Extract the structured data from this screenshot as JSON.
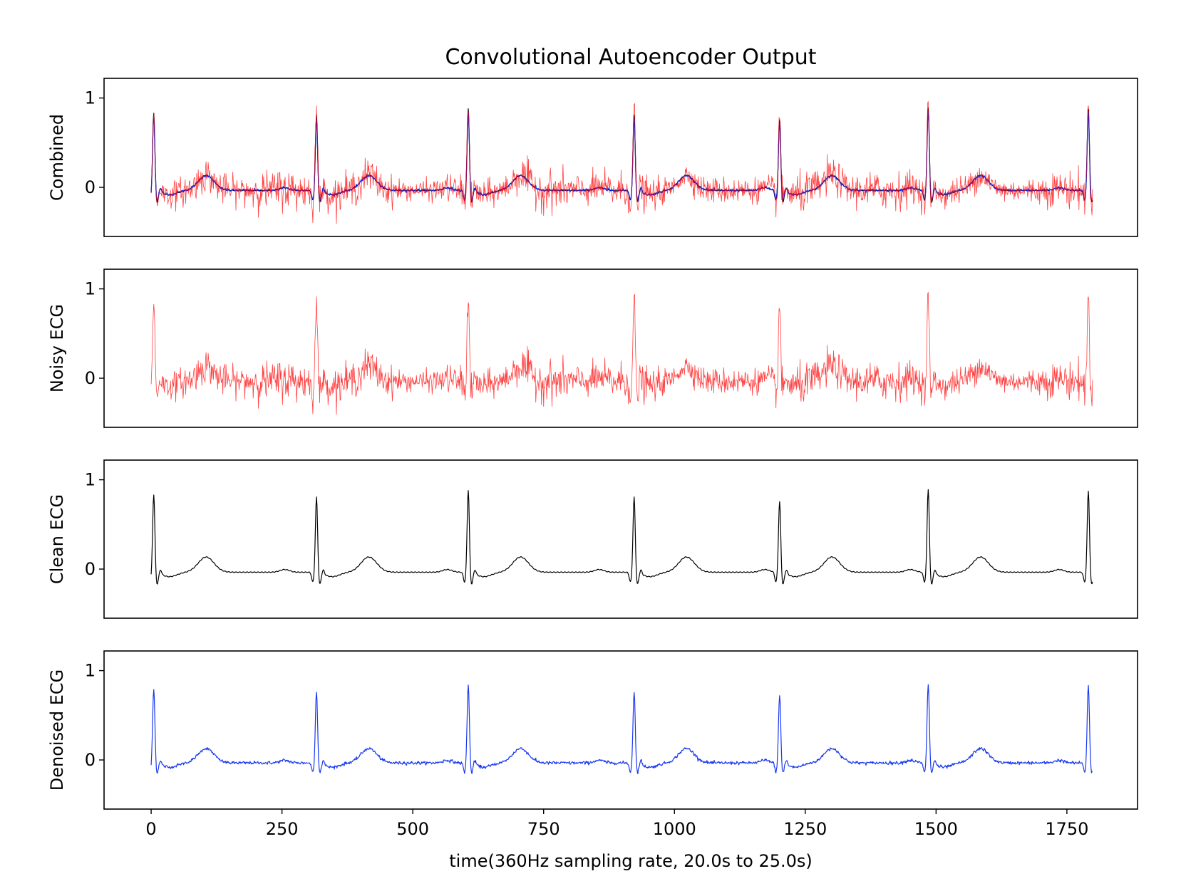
{
  "chart_data": {
    "type": "line",
    "title": "Convolutional Autoencoder Output",
    "xlabel": "time(360Hz sampling rate, 20.0s to 25.0s)",
    "xlim": [
      -90,
      1885
    ],
    "ylim": [
      -0.55,
      1.22
    ],
    "x_ticks": [
      0,
      250,
      500,
      750,
      1000,
      1250,
      1500,
      1750
    ],
    "x_tick_labels": [
      "0",
      "250",
      "500",
      "750",
      "1000",
      "1250",
      "1500",
      "1750"
    ],
    "y_ticks": [
      0,
      1
    ],
    "y_tick_labels": [
      "0",
      "1"
    ],
    "sample_count": 1800,
    "beats": [
      {
        "r_peak_x": 5,
        "amplitude": 0.88
      },
      {
        "r_peak_x": 316,
        "amplitude": 0.85
      },
      {
        "r_peak_x": 606,
        "amplitude": 0.93
      },
      {
        "r_peak_x": 923,
        "amplitude": 0.85
      },
      {
        "r_peak_x": 1201,
        "amplitude": 0.8
      },
      {
        "r_peak_x": 1485,
        "amplitude": 0.94
      },
      {
        "r_peak_x": 1791,
        "amplitude": 0.92
      }
    ],
    "subplots": [
      {
        "ylabel": "Combined",
        "series": [
          "clean",
          "denoised",
          "noisy"
        ]
      },
      {
        "ylabel": "Noisy ECG",
        "series": [
          "noisy"
        ]
      },
      {
        "ylabel": "Clean ECG",
        "series": [
          "clean"
        ]
      },
      {
        "ylabel": "Denoised ECG",
        "series": [
          "denoised"
        ]
      }
    ],
    "series_styles": {
      "noisy": {
        "color": "#ff0000",
        "opacity": 0.75
      },
      "clean": {
        "color": "#000000",
        "opacity": 1
      },
      "denoised": {
        "color": "#0022ee",
        "opacity": 0.9
      }
    }
  }
}
